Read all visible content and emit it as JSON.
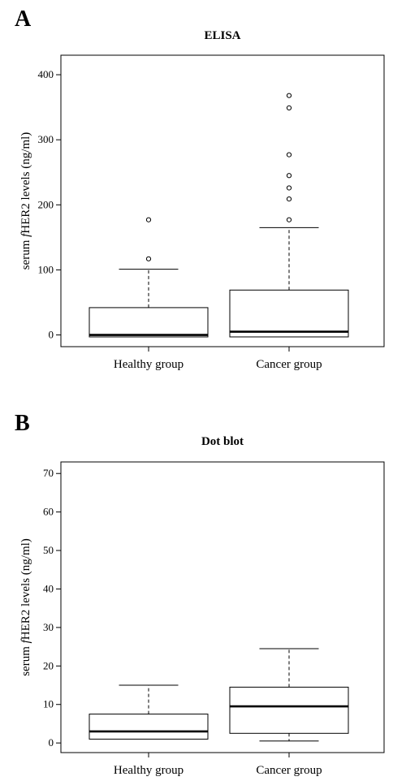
{
  "chart_data": [
    {
      "type": "box",
      "panel_label": "A",
      "title": "ELISA",
      "xlabel": "",
      "ylabel": "serum fHER2 levels (ng/ml)",
      "ylim": [
        -18,
        430
      ],
      "yticks": [
        0,
        100,
        200,
        300,
        400
      ],
      "categories": [
        "Healthy group",
        "Cancer group"
      ],
      "boxes": [
        {
          "name": "Healthy group",
          "whisker_low": -3,
          "q1": -3,
          "median": 0,
          "q3": 42,
          "whisker_high": 101,
          "outliers": [
            117,
            177
          ]
        },
        {
          "name": "Cancer group",
          "whisker_low": -3,
          "q1": -3,
          "median": 5,
          "q3": 69,
          "whisker_high": 165,
          "outliers": [
            177,
            209,
            226,
            245,
            277,
            349,
            368
          ]
        }
      ],
      "grid": false
    },
    {
      "type": "box",
      "panel_label": "B",
      "title": "Dot blot",
      "xlabel": "",
      "ylabel": "serum fHER2 levels (ng/ml)",
      "ylim": [
        -2.5,
        73
      ],
      "yticks": [
        0,
        10,
        20,
        30,
        40,
        50,
        60,
        70
      ],
      "categories": [
        "Healthy group",
        "Cancer group"
      ],
      "boxes": [
        {
          "name": "Healthy group",
          "whisker_low": 1,
          "q1": 1,
          "median": 3,
          "q3": 7.5,
          "whisker_high": 15,
          "outliers": []
        },
        {
          "name": "Cancer group",
          "whisker_low": 0.5,
          "q1": 2.5,
          "median": 9.5,
          "q3": 14.5,
          "whisker_high": 24.5,
          "outliers": []
        }
      ],
      "grid": false
    }
  ]
}
